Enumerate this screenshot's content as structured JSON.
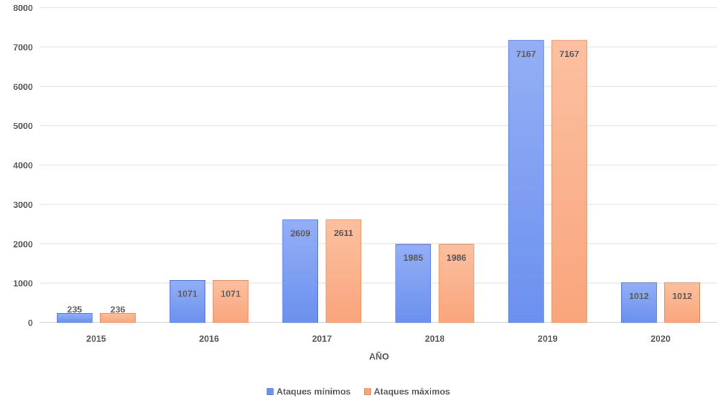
{
  "chart_data": {
    "type": "bar",
    "categories": [
      "2015",
      "2016",
      "2017",
      "2018",
      "2019",
      "2020"
    ],
    "series": [
      {
        "name": "Ataques mínimos",
        "values": [
          235,
          1071,
          2609,
          1985,
          7167,
          1012
        ],
        "color_top": "#94aff6",
        "color_bottom": "#6b90ee",
        "stroke": "#4a72e0"
      },
      {
        "name": "Ataques máximos",
        "values": [
          236,
          1071,
          2611,
          1986,
          7167,
          1012
        ],
        "color_top": "#fcc0a0",
        "color_bottom": "#f9a57c",
        "stroke": "#ee8a52"
      }
    ],
    "xlabel": "AÑO",
    "ylabel": "",
    "ylim": [
      0,
      8000
    ],
    "yticks": [
      0,
      1000,
      2000,
      3000,
      4000,
      5000,
      6000,
      7000,
      8000
    ],
    "grid": true,
    "legend_position": "bottom"
  }
}
